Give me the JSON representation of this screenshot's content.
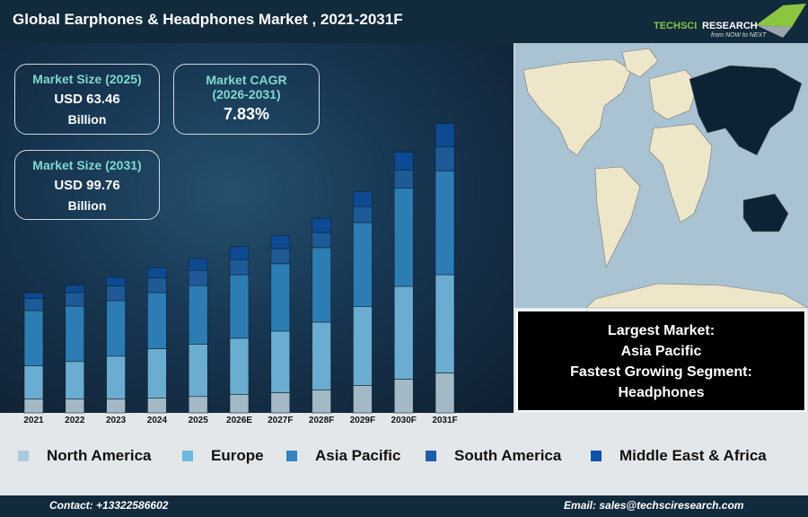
{
  "header": {
    "title": "Global Earphones & Headphones Market , 2021-2031F",
    "logo_text": "TechSci Research",
    "logo_tagline": "from NOW to NEXT"
  },
  "stats": {
    "size_2025": {
      "label": "Market Size (2025)",
      "value": "USD 63.46",
      "unit": "Billion"
    },
    "cagr": {
      "label": "Market CAGR",
      "period": "(2026-2031)",
      "value": "7.83%"
    },
    "size_2031": {
      "label": "Market Size (2031)",
      "value": "USD 99.76",
      "unit": "Billion"
    }
  },
  "insight": {
    "l1": "Largest Market:",
    "l2": "Asia Pacific",
    "l3": "Fastest Growing Segment:",
    "l4": "Headphones"
  },
  "footer": {
    "contact": "Contact: +13322586602",
    "email": "Email: sales@techsciresearch.com"
  },
  "chart_data": {
    "type": "bar",
    "stacked": true,
    "grid": false,
    "legend_placement": "bottom",
    "categories": [
      "2021",
      "2022",
      "2023",
      "2024",
      "2025",
      "2026E",
      "2027F",
      "2028F",
      "2029F",
      "2030F",
      "2031F"
    ],
    "series": [
      {
        "name": "North America",
        "color": "#a3bac6",
        "values": [
          15.7,
          15.7,
          15.7,
          16.7,
          18.3,
          20.7,
          22.7,
          25.7,
          30.7,
          37.7,
          44.7
        ]
      },
      {
        "name": "Europe",
        "color": "#6badd0",
        "values": [
          37,
          41.7,
          47.7,
          55,
          58.3,
          62.7,
          68.7,
          75.7,
          88,
          103.7,
          109.7
        ]
      },
      {
        "name": "Asia Pacific",
        "color": "#2c7db4",
        "values": [
          61.7,
          62,
          62,
          62.7,
          65.7,
          71,
          75.3,
          83.3,
          94,
          110,
          115.7
        ]
      },
      {
        "name": "South America",
        "color": "#1d5a96",
        "values": [
          13.3,
          15,
          16.3,
          16.3,
          17,
          17,
          17,
          17,
          18,
          20,
          27.3
        ]
      },
      {
        "name": "Middle East & Africa",
        "color": "#0d4a91",
        "values": [
          6.3,
          8,
          9.7,
          11.7,
          13,
          14.3,
          14.7,
          15.7,
          16.7,
          20,
          26
        ]
      }
    ],
    "ylim": [
      0,
      330
    ]
  }
}
